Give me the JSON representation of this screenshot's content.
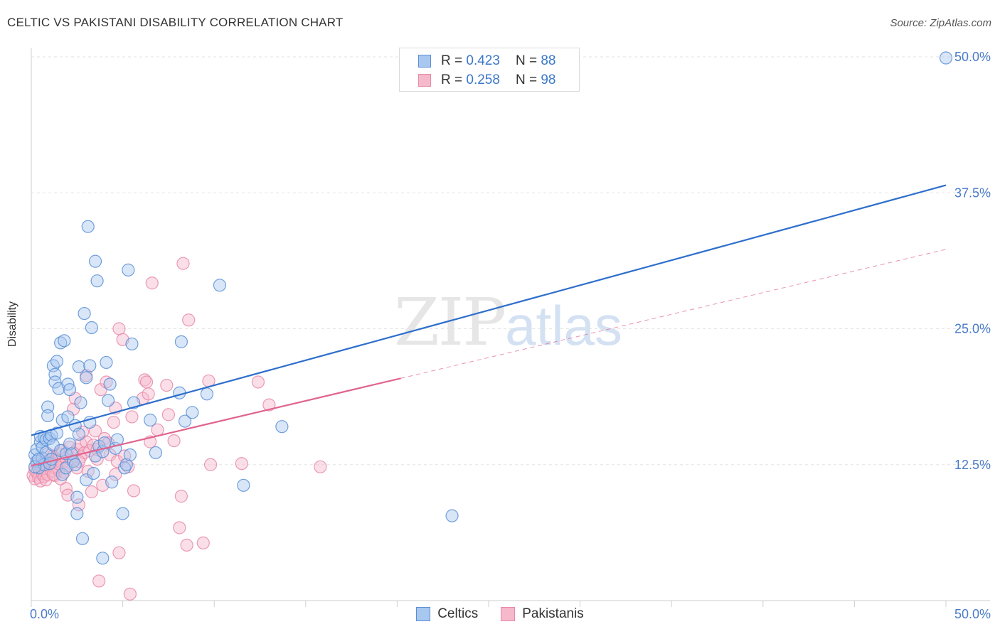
{
  "title": "CELTIC VS PAKISTANI DISABILITY CORRELATION CHART",
  "source": "Source: ZipAtlas.com",
  "watermark": {
    "zip": "ZIP",
    "atlas": "atlas"
  },
  "legend_top": [
    {
      "r_label": "R = ",
      "r_value": "0.423",
      "n_label": "N = ",
      "n_value": "88"
    },
    {
      "r_label": "R = ",
      "r_value": "0.258",
      "n_label": "N = ",
      "n_value": "98"
    }
  ],
  "colors": {
    "celtics_fill": "#a9c8f0",
    "celtics_stroke": "#5b8fd6",
    "celtics_line": "#2e6fcc",
    "pakistanis_fill": "#f6b8cb",
    "pakistanis_stroke": "#e68aa8",
    "pakistanis_line": "#e0648e",
    "grid": "#e3e3e3",
    "tick_text": "#4a7cc9"
  },
  "chart_data": {
    "type": "scatter",
    "title": "CELTIC VS PAKISTANI DISABILITY CORRELATION CHART",
    "xlabel": "",
    "ylabel": "Disability",
    "xlim": [
      0,
      50
    ],
    "ylim": [
      0,
      50
    ],
    "x_tick_labels": [
      "0.0%",
      "50.0%"
    ],
    "y_ticks": [
      12.5,
      25.0,
      37.5,
      50.0
    ],
    "y_tick_labels": [
      "12.5%",
      "25.0%",
      "37.5%",
      "50.0%"
    ],
    "grid": true,
    "legend_position": "bottom",
    "series": [
      {
        "name": "Celtics",
        "trend": {
          "x": [
            0,
            50
          ],
          "y": [
            15.2,
            38.2
          ],
          "solid_to": 50
        },
        "points": [
          [
            0.2,
            13.4
          ],
          [
            0.3,
            12.8
          ],
          [
            0.3,
            13.9
          ],
          [
            0.4,
            12.2
          ],
          [
            0.5,
            14.6
          ],
          [
            0.5,
            15.1
          ],
          [
            0.6,
            14.1
          ],
          [
            0.6,
            13.1
          ],
          [
            0.7,
            15.0
          ],
          [
            0.7,
            12.5
          ],
          [
            0.8,
            14.8
          ],
          [
            0.8,
            13.6
          ],
          [
            0.9,
            17.8
          ],
          [
            0.9,
            17.0
          ],
          [
            1.0,
            14.9
          ],
          [
            1.0,
            12.6
          ],
          [
            1.1,
            15.2
          ],
          [
            1.1,
            13.0
          ],
          [
            1.2,
            21.6
          ],
          [
            1.2,
            14.3
          ],
          [
            1.3,
            20.8
          ],
          [
            1.3,
            20.1
          ],
          [
            1.4,
            22.0
          ],
          [
            1.4,
            15.4
          ],
          [
            1.5,
            19.5
          ],
          [
            1.6,
            23.7
          ],
          [
            1.6,
            13.8
          ],
          [
            1.7,
            16.6
          ],
          [
            1.7,
            11.6
          ],
          [
            1.8,
            23.9
          ],
          [
            1.9,
            13.5
          ],
          [
            1.9,
            12.2
          ],
          [
            2.0,
            16.9
          ],
          [
            2.0,
            19.9
          ],
          [
            2.1,
            19.4
          ],
          [
            2.1,
            14.4
          ],
          [
            2.2,
            13.5
          ],
          [
            2.3,
            12.8
          ],
          [
            2.4,
            16.1
          ],
          [
            2.4,
            12.5
          ],
          [
            2.5,
            8.0
          ],
          [
            2.5,
            9.5
          ],
          [
            2.6,
            15.3
          ],
          [
            2.6,
            21.5
          ],
          [
            2.7,
            18.2
          ],
          [
            2.8,
            5.7
          ],
          [
            2.9,
            26.4
          ],
          [
            3.0,
            11.1
          ],
          [
            3.0,
            20.5
          ],
          [
            3.1,
            34.4
          ],
          [
            3.2,
            16.4
          ],
          [
            3.2,
            21.6
          ],
          [
            3.3,
            25.1
          ],
          [
            3.4,
            11.7
          ],
          [
            3.5,
            13.3
          ],
          [
            3.5,
            31.2
          ],
          [
            3.6,
            29.4
          ],
          [
            3.7,
            14.2
          ],
          [
            3.9,
            13.7
          ],
          [
            3.9,
            3.9
          ],
          [
            4.0,
            14.5
          ],
          [
            4.1,
            21.9
          ],
          [
            4.2,
            18.4
          ],
          [
            4.3,
            19.9
          ],
          [
            4.4,
            10.9
          ],
          [
            4.6,
            14.0
          ],
          [
            4.7,
            14.8
          ],
          [
            5.0,
            8.0
          ],
          [
            5.1,
            12.2
          ],
          [
            5.2,
            12.5
          ],
          [
            5.3,
            30.4
          ],
          [
            5.4,
            13.4
          ],
          [
            5.5,
            23.6
          ],
          [
            5.6,
            18.2
          ],
          [
            6.5,
            16.6
          ],
          [
            6.8,
            13.6
          ],
          [
            8.1,
            19.1
          ],
          [
            8.2,
            23.8
          ],
          [
            8.4,
            16.5
          ],
          [
            8.8,
            17.3
          ],
          [
            9.6,
            19.0
          ],
          [
            10.3,
            29.0
          ],
          [
            11.6,
            10.6
          ],
          [
            13.7,
            16.0
          ],
          [
            23.0,
            7.8
          ],
          [
            50.0,
            49.9
          ],
          [
            0.2,
            12.3
          ],
          [
            0.4,
            13.0
          ]
        ]
      },
      {
        "name": "Pakistanis",
        "trend": {
          "x": [
            0,
            50
          ],
          "y": [
            12.4,
            32.3
          ],
          "solid_to": 20.2
        },
        "points": [
          [
            0.1,
            11.5
          ],
          [
            0.2,
            12.0
          ],
          [
            0.2,
            11.2
          ],
          [
            0.3,
            12.6
          ],
          [
            0.3,
            11.8
          ],
          [
            0.4,
            11.3
          ],
          [
            0.5,
            12.3
          ],
          [
            0.5,
            11.0
          ],
          [
            0.6,
            11.7
          ],
          [
            0.6,
            12.1
          ],
          [
            0.7,
            11.4
          ],
          [
            0.8,
            12.8
          ],
          [
            0.8,
            11.1
          ],
          [
            0.9,
            12.4
          ],
          [
            0.9,
            11.6
          ],
          [
            1.0,
            13.0
          ],
          [
            1.1,
            11.9
          ],
          [
            1.1,
            12.7
          ],
          [
            1.2,
            13.3
          ],
          [
            1.3,
            12.2
          ],
          [
            1.3,
            11.5
          ],
          [
            1.4,
            12.9
          ],
          [
            1.5,
            13.5
          ],
          [
            1.5,
            12.0
          ],
          [
            1.6,
            11.2
          ],
          [
            1.7,
            13.8
          ],
          [
            1.7,
            12.6
          ],
          [
            1.8,
            11.8
          ],
          [
            1.9,
            13.1
          ],
          [
            1.9,
            10.3
          ],
          [
            2.0,
            12.4
          ],
          [
            2.0,
            9.7
          ],
          [
            2.1,
            14.1
          ],
          [
            2.2,
            12.9
          ],
          [
            2.3,
            13.6
          ],
          [
            2.3,
            17.6
          ],
          [
            2.4,
            18.6
          ],
          [
            2.5,
            12.2
          ],
          [
            2.5,
            13.9
          ],
          [
            2.6,
            8.8
          ],
          [
            2.7,
            14.4
          ],
          [
            2.7,
            13.2
          ],
          [
            2.8,
            15.5
          ],
          [
            2.9,
            13.6
          ],
          [
            3.0,
            20.7
          ],
          [
            3.0,
            14.6
          ],
          [
            3.1,
            11.9
          ],
          [
            3.2,
            13.8
          ],
          [
            3.3,
            10.0
          ],
          [
            3.4,
            14.3
          ],
          [
            3.5,
            15.6
          ],
          [
            3.6,
            13.9
          ],
          [
            3.7,
            1.8
          ],
          [
            3.8,
            19.4
          ],
          [
            3.9,
            10.6
          ],
          [
            4.0,
            14.9
          ],
          [
            4.1,
            20.1
          ],
          [
            4.2,
            14.5
          ],
          [
            4.3,
            13.4
          ],
          [
            4.5,
            16.4
          ],
          [
            4.6,
            17.7
          ],
          [
            4.6,
            11.6
          ],
          [
            4.7,
            12.8
          ],
          [
            4.8,
            25.0
          ],
          [
            4.8,
            4.4
          ],
          [
            5.0,
            24.0
          ],
          [
            5.1,
            13.3
          ],
          [
            5.3,
            12.3
          ],
          [
            5.4,
            0.6
          ],
          [
            5.5,
            16.9
          ],
          [
            5.6,
            10.1
          ],
          [
            6.1,
            18.6
          ],
          [
            6.2,
            20.3
          ],
          [
            6.3,
            20.1
          ],
          [
            6.4,
            19.0
          ],
          [
            6.5,
            14.6
          ],
          [
            6.6,
            29.2
          ],
          [
            6.9,
            15.7
          ],
          [
            7.4,
            19.8
          ],
          [
            7.5,
            17.1
          ],
          [
            7.8,
            14.7
          ],
          [
            8.1,
            6.7
          ],
          [
            8.2,
            9.6
          ],
          [
            8.3,
            31.0
          ],
          [
            8.5,
            5.1
          ],
          [
            8.6,
            25.8
          ],
          [
            9.4,
            5.3
          ],
          [
            9.7,
            20.2
          ],
          [
            9.8,
            12.5
          ],
          [
            11.5,
            12.6
          ],
          [
            12.4,
            20.1
          ],
          [
            13.0,
            18.0
          ],
          [
            15.8,
            12.3
          ],
          [
            1.4,
            12.3
          ],
          [
            2.6,
            12.8
          ],
          [
            0.9,
            13.5
          ],
          [
            1.2,
            11.6
          ],
          [
            3.6,
            13.0
          ]
        ]
      }
    ]
  },
  "legend_bottom": [
    {
      "label": "Celtics"
    },
    {
      "label": "Pakistanis"
    }
  ]
}
